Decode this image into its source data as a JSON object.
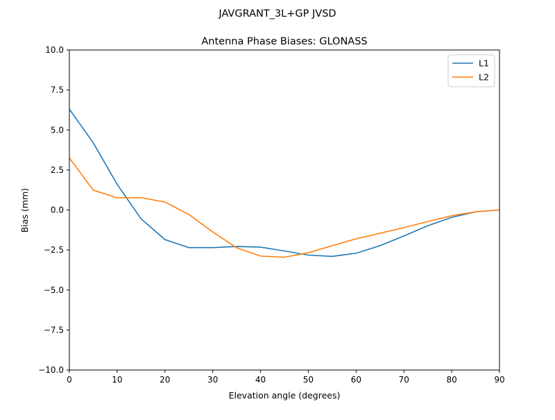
{
  "chart_data": {
    "type": "line",
    "suptitle": "JAVGRANT_3L+GP  JVSD",
    "title": "Antenna Phase Biases: GLONASS",
    "xlabel": "Elevation angle (degrees)",
    "ylabel": "Bias (mm)",
    "xlim": [
      0,
      90
    ],
    "ylim": [
      -10,
      10
    ],
    "xticks": [
      0,
      10,
      20,
      30,
      40,
      50,
      60,
      70,
      80,
      90
    ],
    "yticks": [
      -10.0,
      -7.5,
      -5.0,
      -2.5,
      0.0,
      2.5,
      5.0,
      7.5,
      10.0
    ],
    "ytick_labels": [
      "−10.0",
      "−7.5",
      "−5.0",
      "−2.5",
      "0.0",
      "2.5",
      "5.0",
      "7.5",
      "10.0"
    ],
    "grid": false,
    "legend": "top-right",
    "x": [
      0,
      5,
      10,
      15,
      20,
      25,
      30,
      35,
      40,
      45,
      50,
      55,
      60,
      65,
      70,
      75,
      80,
      85,
      90
    ],
    "series": [
      {
        "name": "L1",
        "color": "#1f77b4",
        "values": [
          6.3,
          4.2,
          1.6,
          -0.55,
          -1.85,
          -2.35,
          -2.35,
          -2.28,
          -2.32,
          -2.56,
          -2.82,
          -2.9,
          -2.7,
          -2.23,
          -1.62,
          -0.98,
          -0.46,
          -0.11,
          0.0
        ]
      },
      {
        "name": "L2",
        "color": "#ff7f0e",
        "values": [
          3.25,
          1.24,
          0.76,
          0.77,
          0.5,
          -0.28,
          -1.37,
          -2.36,
          -2.88,
          -2.95,
          -2.67,
          -2.23,
          -1.8,
          -1.45,
          -1.1,
          -0.72,
          -0.36,
          -0.11,
          0.0
        ]
      }
    ]
  }
}
